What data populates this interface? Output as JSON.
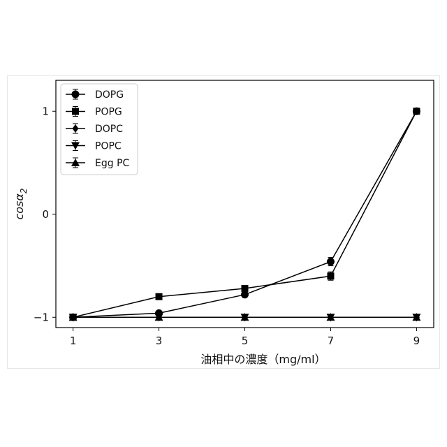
{
  "chart_data": {
    "type": "line",
    "xlabel": "油相中の濃度（mg/ml）",
    "ylabel_main": "cosα",
    "ylabel_sub": "2",
    "x": [
      1,
      3,
      5,
      7,
      9
    ],
    "xlim": [
      0.6,
      9.4
    ],
    "ylim": [
      -1.1,
      1.3
    ],
    "xticks": [
      "1",
      "3",
      "5",
      "7",
      "9"
    ],
    "yticks": [
      {
        "v": 1,
        "label": "1"
      },
      {
        "v": 0,
        "label": "0"
      },
      {
        "v": -1,
        "label": "−1"
      }
    ],
    "legend_placement": "top-left",
    "color": "#000000",
    "series": [
      {
        "name": "DOPG",
        "marker": "circle",
        "values": [
          -1,
          -0.96,
          -0.78,
          -0.46,
          1
        ],
        "errors": [
          0,
          0.02,
          0.02,
          0.04,
          0
        ]
      },
      {
        "name": "POPG",
        "marker": "square",
        "values": [
          -1,
          -0.8,
          -0.72,
          -0.6,
          1
        ],
        "errors": [
          0,
          0.02,
          0.02,
          0.04,
          0
        ]
      },
      {
        "name": "DOPC",
        "marker": "diamond",
        "values": [
          -1,
          -1,
          -1,
          -1,
          -1
        ],
        "errors": [
          0,
          0,
          0,
          0,
          0
        ]
      },
      {
        "name": "POPC",
        "marker": "triangle-down",
        "values": [
          -1,
          -1,
          -1,
          -1,
          -1
        ],
        "errors": [
          0,
          0,
          0,
          0,
          0
        ]
      },
      {
        "name": "Egg PC",
        "marker": "triangle-up",
        "values": [
          -1,
          -1,
          -1,
          -1,
          -1
        ],
        "errors": [
          0,
          0,
          0,
          0,
          0
        ]
      }
    ]
  }
}
